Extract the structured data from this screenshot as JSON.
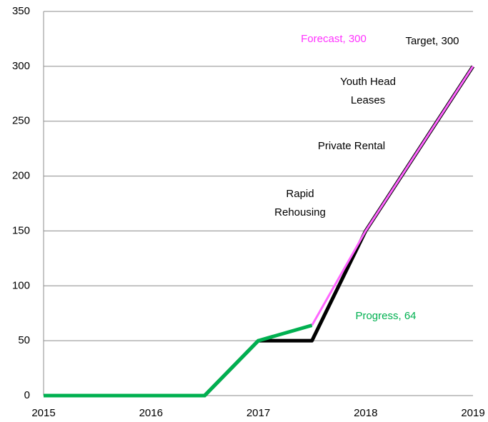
{
  "chart_data": {
    "type": "line",
    "xlim": [
      2015,
      2019
    ],
    "xticks": [
      2015,
      2016,
      2017,
      2018,
      2019
    ],
    "ylim": [
      0,
      350
    ],
    "yticks": [
      0,
      50,
      100,
      150,
      200,
      250,
      300,
      350
    ],
    "grid": true,
    "series": [
      {
        "color": "#000000",
        "x": [
          2015,
          2016.5,
          2017,
          2017.5,
          2018,
          2019
        ],
        "values": [
          0,
          0,
          50,
          50,
          150,
          300
        ]
      },
      {
        "color": "#ff66ff",
        "x": [
          2017.5,
          2018,
          2019
        ],
        "values": [
          64,
          150,
          300
        ]
      },
      {
        "color": "#00b050",
        "x": [
          2015,
          2016.5,
          2017,
          2017.5
        ],
        "values": [
          0,
          0,
          50,
          64
        ]
      }
    ],
    "annotations": [
      {
        "lines": [
          "Forecast, 300"
        ],
        "color": "#ff33ff"
      },
      {
        "lines": [
          "Target, 300"
        ],
        "color": "#000000"
      },
      {
        "lines": [
          "Youth Head",
          "Leases"
        ],
        "color": "#000000"
      },
      {
        "lines": [
          "Private Rental"
        ],
        "color": "#000000"
      },
      {
        "lines": [
          "Rapid",
          "Rehousing"
        ],
        "color": "#000000"
      },
      {
        "lines": [
          "Progress, 64"
        ],
        "color": "#00b050"
      }
    ]
  }
}
